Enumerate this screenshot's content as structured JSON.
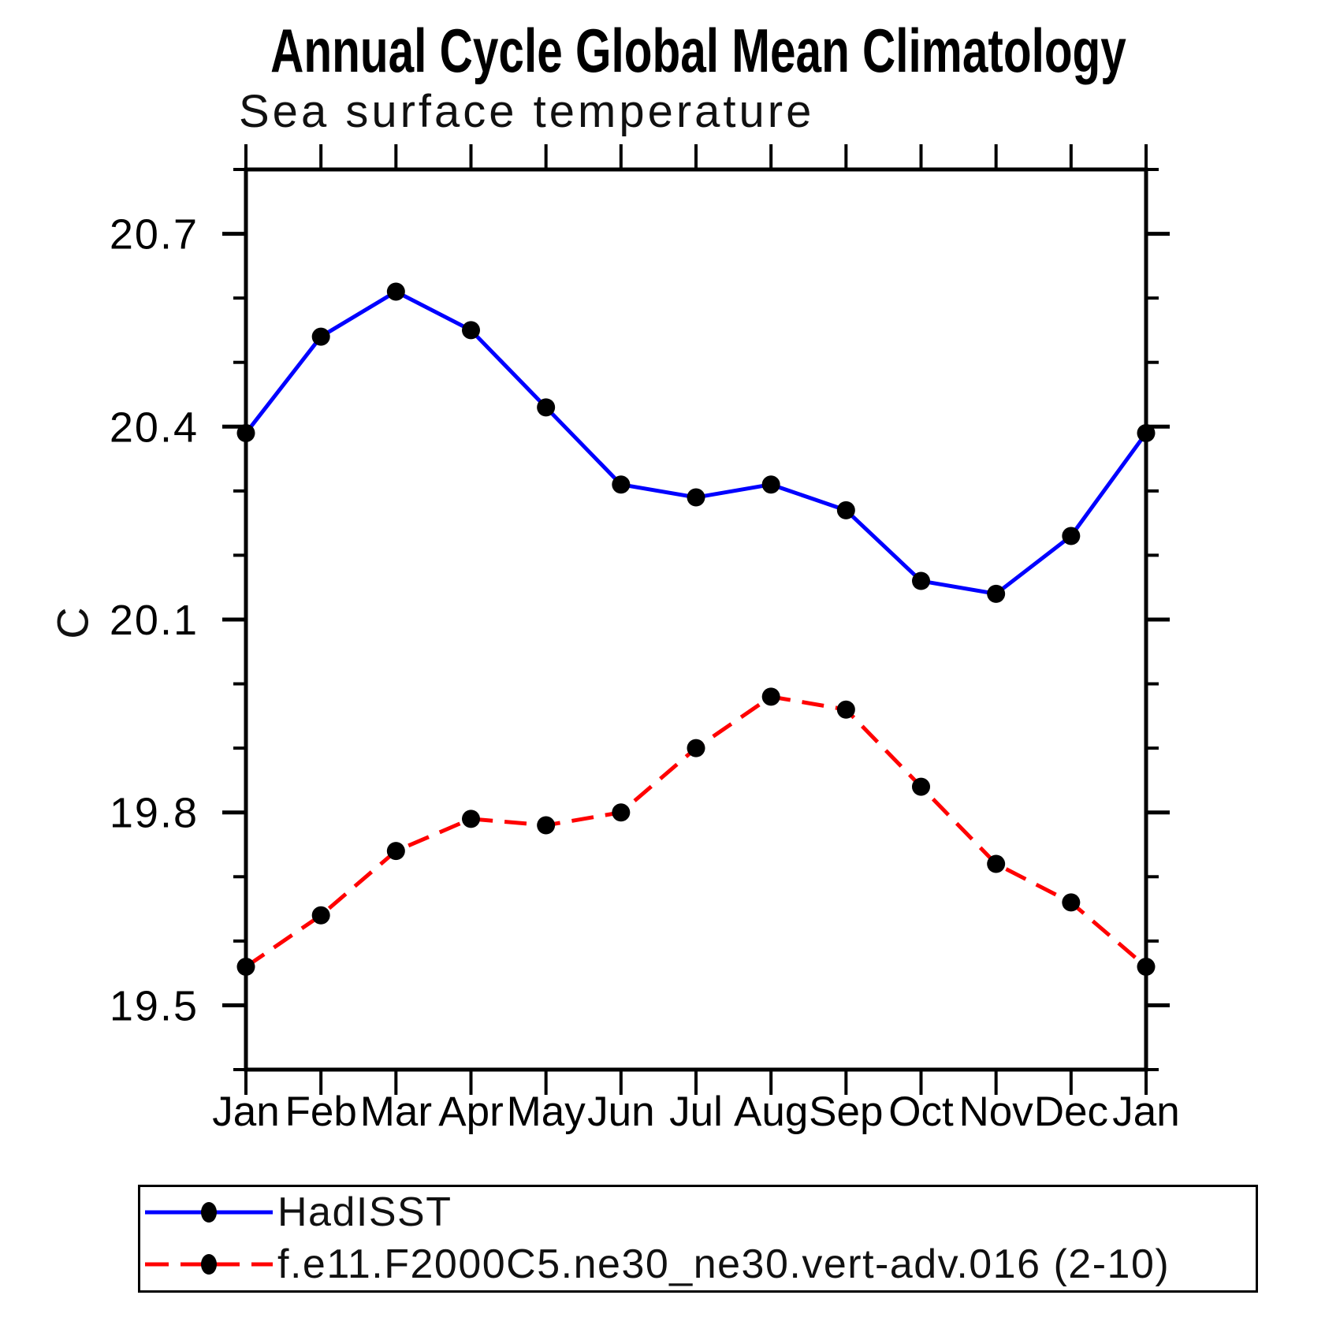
{
  "title": "Annual Cycle Global Mean Climatology",
  "subtitle": "Sea surface temperature",
  "y_axis_title": "C",
  "colors": {
    "hadisst_line": "#0000ff",
    "model_line": "#ff0000",
    "marker": "#000000",
    "axis": "#000000",
    "background": "#ffffff"
  },
  "legend": {
    "entries": [
      {
        "label": "HadISST",
        "line_style": "solid",
        "color": "#0000ff",
        "marker": "filled-circle"
      },
      {
        "label": "f.e11.F2000C5.ne30_ne30.vert-adv.016 (2-10)",
        "line_style": "dashed",
        "color": "#ff0000",
        "marker": "filled-circle"
      }
    ]
  },
  "chart_data": {
    "type": "line",
    "title": "Annual Cycle Global Mean Climatology",
    "subtitle": "Sea surface temperature",
    "ylabel": "C",
    "xlabel": "",
    "categories": [
      "Jan",
      "Feb",
      "Mar",
      "Apr",
      "May",
      "Jun",
      "Jul",
      "Aug",
      "Sep",
      "Oct",
      "Nov",
      "Dec",
      "Jan"
    ],
    "series": [
      {
        "name": "HadISST",
        "color": "#0000ff",
        "line_style": "solid",
        "marker": "circle",
        "values": [
          20.39,
          20.54,
          20.61,
          20.55,
          20.43,
          20.31,
          20.29,
          20.31,
          20.27,
          20.16,
          20.14,
          20.23,
          20.39
        ]
      },
      {
        "name": "f.e11.F2000C5.ne30_ne30.vert-adv.016 (2-10)",
        "color": "#ff0000",
        "line_style": "dashed",
        "marker": "circle",
        "values": [
          19.56,
          19.64,
          19.74,
          19.79,
          19.78,
          19.8,
          19.9,
          19.98,
          19.96,
          19.84,
          19.72,
          19.66,
          19.56
        ]
      }
    ],
    "ylim": [
      19.4,
      20.8
    ],
    "yticks_major": [
      19.5,
      19.8,
      20.1,
      20.4,
      20.7
    ],
    "ytick_minor_step": 0.1,
    "grid": false,
    "legend_position": "bottom"
  }
}
